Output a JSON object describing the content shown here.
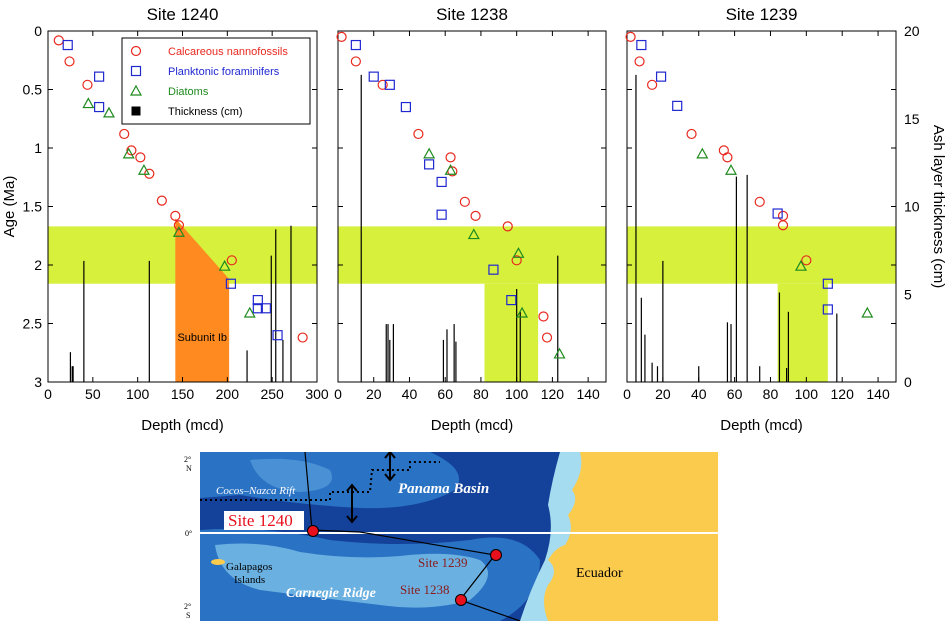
{
  "chart_data": [
    {
      "type": "scatter",
      "title": "Site 1240",
      "xlabel": "Depth (mcd)",
      "ylabel": "Age (Ma)",
      "xlim": [
        0,
        300
      ],
      "ylim": [
        3,
        0
      ],
      "xticks": [
        "0",
        "50",
        "100",
        "150",
        "200",
        "250",
        "300"
      ],
      "yticks": [
        "0",
        "0.5",
        "1",
        "1.5",
        "2",
        "2.5",
        "3"
      ],
      "highlight_band_age": [
        1.67,
        2.16
      ],
      "annotation": "Subunit Ib",
      "series": [
        {
          "name": "Calcareous nannofossils",
          "marker": "circle",
          "color": "#e8281e",
          "points": [
            [
              12,
              0.08
            ],
            [
              24,
              0.26
            ],
            [
              44,
              0.46
            ],
            [
              85,
              0.88
            ],
            [
              93,
              1.02
            ],
            [
              103,
              1.08
            ],
            [
              113,
              1.22
            ],
            [
              127,
              1.45
            ],
            [
              142,
              1.58
            ],
            [
              146,
              1.66
            ],
            [
              205,
              1.96
            ],
            [
              284,
              2.62
            ]
          ]
        },
        {
          "name": "Planktonic foraminifers",
          "marker": "square",
          "color": "#2028d0",
          "points": [
            [
              22,
              0.12
            ],
            [
              57,
              0.39
            ],
            [
              57,
              0.65
            ],
            [
              204,
              2.16
            ],
            [
              234,
              2.3
            ],
            [
              234,
              2.37
            ],
            [
              243,
              2.37
            ],
            [
              256,
              2.6
            ]
          ]
        },
        {
          "name": "Diatoms",
          "marker": "triangle",
          "color": "#1e8a1e",
          "points": [
            [
              45,
              0.62
            ],
            [
              68,
              0.7
            ],
            [
              90,
              1.05
            ],
            [
              107,
              1.19
            ],
            [
              146,
              1.72
            ],
            [
              197,
              2.01
            ],
            [
              225,
              2.41
            ]
          ]
        }
      ],
      "thickness_cm": [
        [
          25,
          1.7
        ],
        [
          27,
          0.9
        ],
        [
          28,
          0.9
        ],
        [
          40,
          6.9
        ],
        [
          113,
          6.9
        ],
        [
          222,
          1.8
        ],
        [
          249,
          7.2
        ],
        [
          254,
          8.7
        ],
        [
          262,
          2.4
        ],
        [
          271,
          8.9
        ]
      ]
    },
    {
      "type": "scatter",
      "title": "Site 1238",
      "xlabel": "Depth (mcd)",
      "ylabel": "",
      "xlim": [
        0,
        150
      ],
      "ylim": [
        3,
        0
      ],
      "xticks": [
        "0",
        "20",
        "40",
        "60",
        "80",
        "100",
        "120",
        "140"
      ],
      "yticks": [],
      "highlight_band_age": [
        1.67,
        2.16
      ],
      "secondary_band": {
        "depth": [
          82,
          112
        ],
        "age": [
          2.16,
          3.0
        ]
      },
      "series": [
        {
          "name": "Calcareous nannofossils",
          "marker": "circle",
          "color": "#e8281e",
          "points": [
            [
              2,
              0.05
            ],
            [
              10,
              0.26
            ],
            [
              25,
              0.46
            ],
            [
              45,
              0.88
            ],
            [
              63,
              1.08
            ],
            [
              64,
              1.2
            ],
            [
              71,
              1.46
            ],
            [
              77,
              1.58
            ],
            [
              95,
              1.67
            ],
            [
              100,
              1.96
            ],
            [
              115,
              2.44
            ],
            [
              117,
              2.62
            ]
          ]
        },
        {
          "name": "Planktonic foraminifers",
          "marker": "square",
          "color": "#2028d0",
          "points": [
            [
              10,
              0.12
            ],
            [
              20,
              0.39
            ],
            [
              29,
              0.46
            ],
            [
              38,
              0.65
            ],
            [
              51,
              1.14
            ],
            [
              58,
              1.29
            ],
            [
              58,
              1.57
            ],
            [
              87,
              2.04
            ],
            [
              97,
              2.3
            ]
          ]
        },
        {
          "name": "Diatoms",
          "marker": "triangle",
          "color": "#1e8a1e",
          "points": [
            [
              51,
              1.05
            ],
            [
              63,
              1.19
            ],
            [
              76,
              1.74
            ],
            [
              101,
              1.9
            ],
            [
              103,
              2.41
            ],
            [
              124,
              2.76
            ]
          ]
        }
      ],
      "thickness_cm": [
        [
          13,
          17.5
        ],
        [
          27,
          3.3
        ],
        [
          28,
          3.3
        ],
        [
          29,
          2.4
        ],
        [
          31,
          3.3
        ],
        [
          59,
          2.4
        ],
        [
          61,
          3.0
        ],
        [
          65,
          3.3
        ],
        [
          66,
          2.3
        ],
        [
          100,
          5.3
        ],
        [
          102,
          4.0
        ],
        [
          123,
          7.2
        ]
      ]
    },
    {
      "type": "scatter",
      "title": "Site 1239",
      "xlabel": "Depth (mcd)",
      "ylabel": "Ash layer thickness (cm)",
      "xlim": [
        0,
        150
      ],
      "ylim": [
        3,
        0
      ],
      "xticks": [
        "0",
        "20",
        "40",
        "60",
        "80",
        "100",
        "120",
        "140"
      ],
      "yticks": [
        "0",
        "5",
        "10",
        "15",
        "20"
      ],
      "y2lim": [
        0,
        20
      ],
      "highlight_band_age": [
        1.67,
        2.16
      ],
      "secondary_band": {
        "depth": [
          84,
          112
        ],
        "age": [
          2.16,
          3.0
        ]
      },
      "series": [
        {
          "name": "Calcareous nannofossils",
          "marker": "circle",
          "color": "#e8281e",
          "points": [
            [
              2,
              0.05
            ],
            [
              7,
              0.26
            ],
            [
              14,
              0.46
            ],
            [
              36,
              0.88
            ],
            [
              54,
              1.02
            ],
            [
              56,
              1.08
            ],
            [
              74,
              1.46
            ],
            [
              87,
              1.58
            ],
            [
              87,
              1.66
            ],
            [
              100,
              1.96
            ]
          ]
        },
        {
          "name": "Planktonic foraminifers",
          "marker": "square",
          "color": "#2028d0",
          "points": [
            [
              8,
              0.12
            ],
            [
              19,
              0.39
            ],
            [
              28,
              0.64
            ],
            [
              84,
              1.56
            ],
            [
              112,
              2.16
            ],
            [
              112,
              2.38
            ]
          ]
        },
        {
          "name": "Diatoms",
          "marker": "triangle",
          "color": "#1e8a1e",
          "points": [
            [
              42,
              1.05
            ],
            [
              58,
              1.19
            ],
            [
              97,
              2.01
            ],
            [
              134,
              2.41
            ]
          ]
        }
      ],
      "thickness_cm": [
        [
          5,
          17.5
        ],
        [
          8,
          4.8
        ],
        [
          10,
          2.7
        ],
        [
          14,
          1.1
        ],
        [
          17,
          0.9
        ],
        [
          20,
          6.9
        ],
        [
          40,
          0.9
        ],
        [
          56,
          3.4
        ],
        [
          58,
          3.3
        ],
        [
          61,
          11.7
        ],
        [
          67,
          11.8
        ],
        [
          74,
          0.9
        ],
        [
          85,
          5.1
        ],
        [
          89,
          0.8
        ],
        [
          90,
          4.0
        ],
        [
          117,
          3.9
        ]
      ]
    }
  ],
  "legend": {
    "items": [
      {
        "label": "Calcareous nannofossils",
        "color": "#e8281e",
        "marker": "circle"
      },
      {
        "label": "Planktonic foraminifers",
        "color": "#2028d0",
        "marker": "square"
      },
      {
        "label": "Diatoms",
        "color": "#1e8a1e",
        "marker": "triangle"
      },
      {
        "label": "Thickness (cm)",
        "color": "#000000",
        "marker": "filled-square"
      }
    ]
  },
  "colors": {
    "band": "#d6f03c",
    "subunit": "#ff8a20",
    "sea_deep": "#14429a",
    "sea_mid": "#2a72c4",
    "sea_shallow": "#6ab0e0",
    "land": "#fbcb4e"
  },
  "map": {
    "lat_labels": [
      "2°\nN",
      "0°",
      "2°\nS"
    ],
    "labels": {
      "panama_basin": "Panama Basin",
      "cocos_nazca": "Cocos–Nazca Rift",
      "site1240": "Site 1240",
      "site1239": "Site 1239",
      "site1238": "Site 1238",
      "galapagos": "Galapagos",
      "islands": "Islands",
      "carnegie": "Carnegie Ridge",
      "ecuador": "Ecuador"
    }
  }
}
